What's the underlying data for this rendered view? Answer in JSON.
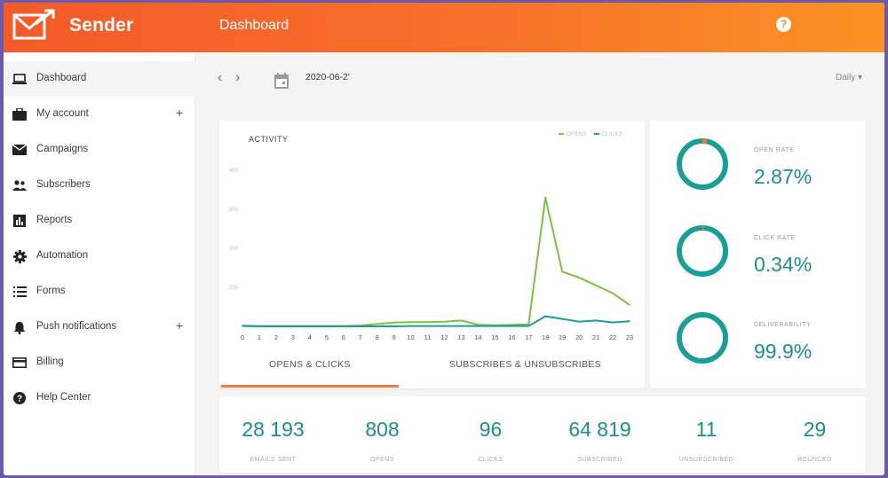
{
  "header": {
    "brand": "Sender",
    "title": "Dashboard",
    "help_glyph": "?",
    "colors": {
      "gradient_start": "#f45a2a",
      "gradient_end": "#fb9224"
    }
  },
  "sidebar": {
    "items": [
      {
        "label": "Dashboard",
        "icon": "laptop-icon",
        "active": true,
        "expandable": false
      },
      {
        "label": "My account",
        "icon": "briefcase-icon",
        "active": false,
        "expandable": true
      },
      {
        "label": "Campaigns",
        "icon": "envelope-icon",
        "active": false,
        "expandable": false
      },
      {
        "label": "Subscribers",
        "icon": "people-icon",
        "active": false,
        "expandable": false
      },
      {
        "label": "Reports",
        "icon": "bar-chart-icon",
        "active": false,
        "expandable": false
      },
      {
        "label": "Automation",
        "icon": "gear-icon",
        "active": false,
        "expandable": false
      },
      {
        "label": "Forms",
        "icon": "list-icon",
        "active": false,
        "expandable": false
      },
      {
        "label": "Push notifications",
        "icon": "bell-icon",
        "active": false,
        "expandable": true
      },
      {
        "label": "Billing",
        "icon": "credit-card-icon",
        "active": false,
        "expandable": false
      },
      {
        "label": "Help Center",
        "icon": "help-circle-icon",
        "active": false,
        "expandable": false
      }
    ],
    "plus_glyph": "+"
  },
  "toolbar": {
    "prev_glyph": "‹",
    "next_glyph": "›",
    "date": "2020-06-2'",
    "period": "Daily ▾"
  },
  "activity": {
    "title": "ACTIVITY",
    "legend": [
      {
        "name": "OPENS",
        "color": "#7cc242"
      },
      {
        "name": "CLICKS",
        "color": "#1a9e96"
      }
    ],
    "tabs": [
      {
        "label": "OPENS & CLICKS",
        "active": true
      },
      {
        "label": "SUBSCRIBES & UNSUBSCRIBES",
        "active": false
      }
    ]
  },
  "chart_data": {
    "type": "line",
    "title": "ACTIVITY",
    "x": [
      "0",
      "1",
      "2",
      "3",
      "4",
      "5",
      "6",
      "7",
      "8",
      "9",
      "10",
      "11",
      "12",
      "13",
      "14",
      "15",
      "16",
      "17",
      "18",
      "19",
      "20",
      "21",
      "22",
      "23"
    ],
    "y_ticks": [
      100,
      200,
      300,
      400
    ],
    "ylim": [
      0,
      400
    ],
    "grid": false,
    "legend_position": "top-right",
    "series": [
      {
        "name": "OPENS",
        "color": "#7cc242",
        "values": [
          2,
          1,
          1,
          1,
          1,
          1,
          1,
          2,
          6,
          10,
          11,
          11,
          12,
          15,
          4,
          3,
          4,
          5,
          330,
          140,
          125,
          105,
          85,
          55
        ]
      },
      {
        "name": "CLICKS",
        "color": "#1a9e96",
        "values": [
          1,
          0,
          0,
          0,
          0,
          0,
          0,
          0,
          0,
          0,
          1,
          1,
          1,
          1,
          1,
          1,
          1,
          1,
          26,
          19,
          12,
          15,
          10,
          13
        ]
      }
    ]
  },
  "rates": [
    {
      "label": "OPEN RATE",
      "value": "2.87%",
      "percent": 2.87,
      "ring_color": "#1a9e96",
      "accent_color": "#f47a3c"
    },
    {
      "label": "CLICK RATE",
      "value": "0.34%",
      "percent": 0.34,
      "ring_color": "#1a9e96",
      "accent_color": "#f47a3c"
    },
    {
      "label": "DELIVERABILITY",
      "value": "99.9%",
      "percent": 99.9,
      "ring_color": "#f25c22",
      "accent_color": "#1a9e96"
    }
  ],
  "stats": [
    {
      "value": "28 193",
      "label": "EMAILS SENT"
    },
    {
      "value": "808",
      "label": "OPENS"
    },
    {
      "value": "96",
      "label": "CLICKS"
    },
    {
      "value": "64 819",
      "label": "SUBSCRIBED"
    },
    {
      "value": "11",
      "label": "UNSUBSCRIBED"
    },
    {
      "value": "29",
      "label": "BOUNCED"
    }
  ]
}
